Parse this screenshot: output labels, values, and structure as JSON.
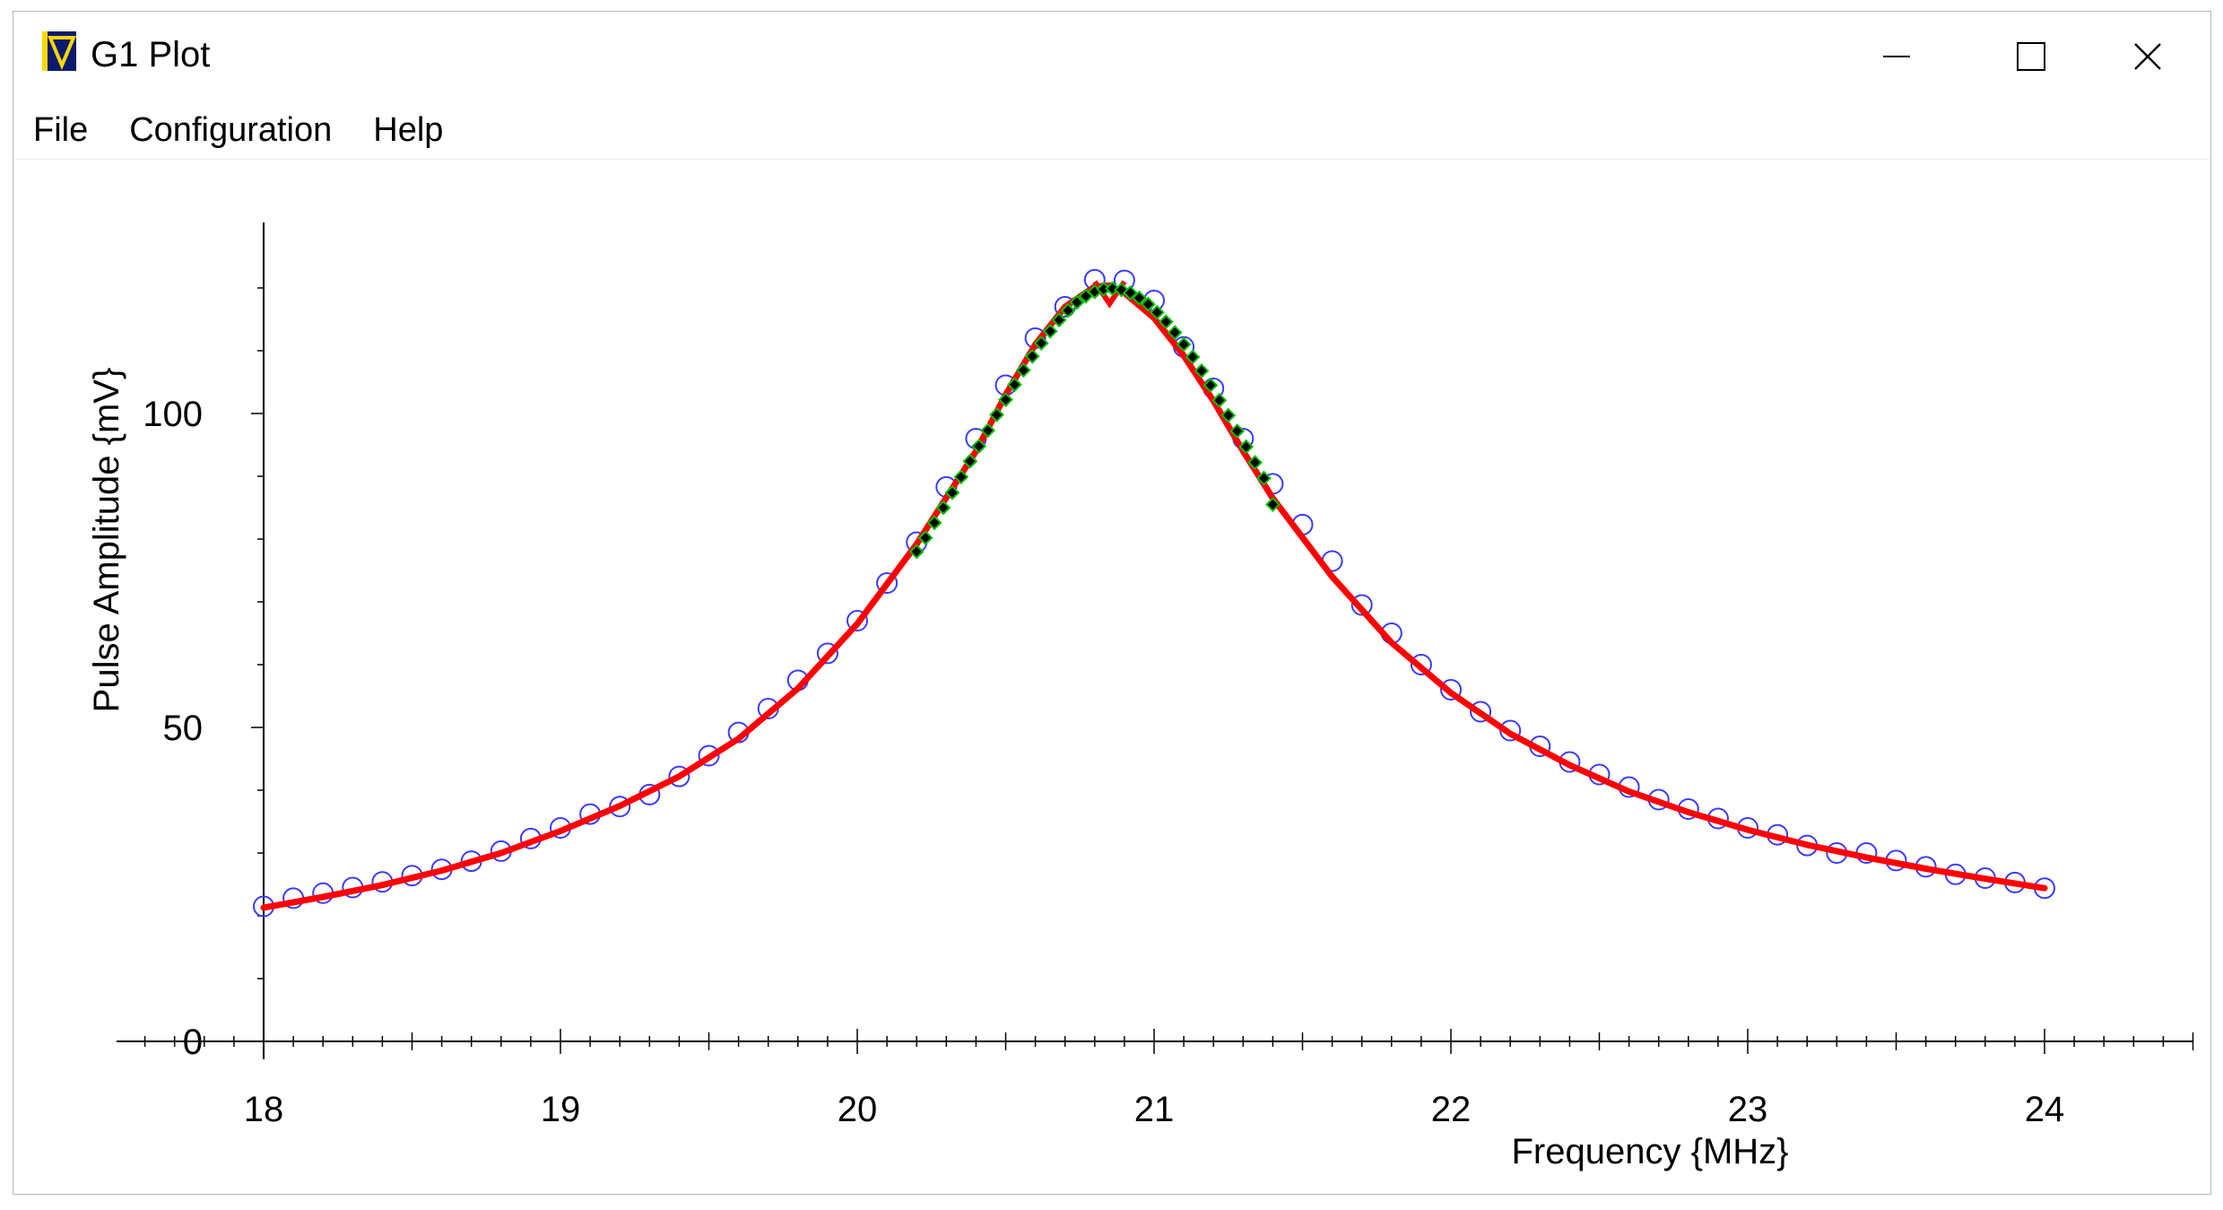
{
  "window": {
    "title": "G1 Plot",
    "icon": "v-logo-icon",
    "controls": [
      "minimize-icon",
      "maximize-icon",
      "close-icon"
    ]
  },
  "menu": {
    "items": [
      "File",
      "Configuration",
      "Help"
    ]
  },
  "colors": {
    "axis": "#000000",
    "measured_points": "#3b3bff",
    "fit_curve": "#ff0000",
    "peak_points": "#00c000",
    "peak_points_fill": "#000000",
    "icon_bg": "#0a1a6e",
    "icon_accent": "#ffd700"
  },
  "chart_data": {
    "type": "scatter",
    "title": "",
    "xlabel": "Frequency {MHz}",
    "ylabel": "Pulse Amplitude {mV}",
    "xlim": [
      18,
      24.5
    ],
    "ylim": [
      0,
      130
    ],
    "xticks": [
      18,
      19,
      20,
      21,
      22,
      23,
      24
    ],
    "yticks": [
      0,
      50,
      100
    ],
    "grid": false,
    "legend": "none",
    "series": [
      {
        "style": "open-circle",
        "color": "#3b3bff",
        "points": [
          [
            18.0,
            21.5
          ],
          [
            18.1,
            22.8
          ],
          [
            18.2,
            23.6
          ],
          [
            18.3,
            24.5
          ],
          [
            18.4,
            25.4
          ],
          [
            18.5,
            26.4
          ],
          [
            18.6,
            27.4
          ],
          [
            18.7,
            28.7
          ],
          [
            18.8,
            30.3
          ],
          [
            18.9,
            32.3
          ],
          [
            19.0,
            34.0
          ],
          [
            19.1,
            36.2
          ],
          [
            19.2,
            37.4
          ],
          [
            19.3,
            39.3
          ],
          [
            19.4,
            42.2
          ],
          [
            19.5,
            45.5
          ],
          [
            19.6,
            49.2
          ],
          [
            19.7,
            53.0
          ],
          [
            19.8,
            57.5
          ],
          [
            19.9,
            61.8
          ],
          [
            20.0,
            67.0
          ],
          [
            20.1,
            73.0
          ],
          [
            20.2,
            79.5
          ],
          [
            20.3,
            88.3
          ],
          [
            20.4,
            96.0
          ],
          [
            20.5,
            104.5
          ],
          [
            20.6,
            112.0
          ],
          [
            20.7,
            117.0
          ],
          [
            20.8,
            121.3
          ],
          [
            20.9,
            121.2
          ],
          [
            21.0,
            118.0
          ],
          [
            21.1,
            110.6
          ],
          [
            21.2,
            104.0
          ],
          [
            21.3,
            96.0
          ],
          [
            21.4,
            88.8
          ],
          [
            21.5,
            82.3
          ],
          [
            21.6,
            76.5
          ],
          [
            21.7,
            69.5
          ],
          [
            21.8,
            65.0
          ],
          [
            21.9,
            60.0
          ],
          [
            22.0,
            56.0
          ],
          [
            22.1,
            52.5
          ],
          [
            22.2,
            49.5
          ],
          [
            22.3,
            47.0
          ],
          [
            22.4,
            44.5
          ],
          [
            22.5,
            42.5
          ],
          [
            22.6,
            40.5
          ],
          [
            22.7,
            38.5
          ],
          [
            22.8,
            37.0
          ],
          [
            22.9,
            35.5
          ],
          [
            23.0,
            34.0
          ],
          [
            23.1,
            32.9
          ],
          [
            23.2,
            31.2
          ],
          [
            23.3,
            30.0
          ],
          [
            23.4,
            30.0
          ],
          [
            23.5,
            28.8
          ],
          [
            23.6,
            27.8
          ],
          [
            23.7,
            26.6
          ],
          [
            23.8,
            26.0
          ],
          [
            23.9,
            25.3
          ],
          [
            24.0,
            24.4
          ]
        ]
      },
      {
        "style": "line",
        "color": "#ff0000",
        "points": [
          [
            18.0,
            21.3
          ],
          [
            18.2,
            23.0
          ],
          [
            18.4,
            24.9
          ],
          [
            18.6,
            27.2
          ],
          [
            18.8,
            30.0
          ],
          [
            19.0,
            33.5
          ],
          [
            19.2,
            37.5
          ],
          [
            19.4,
            42.2
          ],
          [
            19.6,
            48.2
          ],
          [
            19.8,
            56.2
          ],
          [
            20.0,
            66.5
          ],
          [
            20.2,
            79.2
          ],
          [
            20.4,
            94.0
          ],
          [
            20.5,
            103.0
          ],
          [
            20.6,
            111.0
          ],
          [
            20.7,
            117.0
          ],
          [
            20.8,
            120.2
          ],
          [
            20.85,
            120.4
          ],
          [
            20.9,
            119.2
          ],
          [
            21.0,
            115.2
          ],
          [
            21.1,
            109.2
          ],
          [
            21.2,
            102.0
          ],
          [
            21.3,
            94.0
          ],
          [
            21.4,
            86.5
          ],
          [
            21.6,
            74.0
          ],
          [
            21.8,
            63.5
          ],
          [
            22.0,
            55.5
          ],
          [
            22.2,
            49.0
          ],
          [
            22.4,
            44.0
          ],
          [
            22.6,
            39.8
          ],
          [
            22.8,
            36.5
          ],
          [
            23.0,
            33.7
          ],
          [
            23.2,
            31.3
          ],
          [
            23.4,
            29.3
          ],
          [
            23.6,
            27.5
          ],
          [
            23.8,
            25.9
          ],
          [
            24.0,
            24.4
          ]
        ]
      },
      {
        "style": "filled-diamond",
        "color": "#000000",
        "edge": "#00c000",
        "points": [
          [
            20.2,
            78.0
          ],
          [
            20.23,
            80.2
          ],
          [
            20.26,
            82.6
          ],
          [
            20.29,
            85.0
          ],
          [
            20.32,
            87.4
          ],
          [
            20.35,
            89.9
          ],
          [
            20.38,
            92.4
          ],
          [
            20.41,
            94.8
          ],
          [
            20.44,
            97.3
          ],
          [
            20.47,
            99.8
          ],
          [
            20.5,
            102.2
          ],
          [
            20.53,
            104.6
          ],
          [
            20.56,
            106.9
          ],
          [
            20.59,
            109.1
          ],
          [
            20.62,
            111.2
          ],
          [
            20.65,
            113.1
          ],
          [
            20.68,
            114.9
          ],
          [
            20.71,
            116.4
          ],
          [
            20.74,
            117.7
          ],
          [
            20.77,
            118.7
          ],
          [
            20.8,
            119.4
          ],
          [
            20.83,
            119.8
          ],
          [
            20.86,
            119.9
          ],
          [
            20.89,
            119.7
          ],
          [
            20.92,
            119.2
          ],
          [
            20.95,
            118.4
          ],
          [
            20.98,
            117.4
          ],
          [
            21.01,
            116.1
          ],
          [
            21.04,
            114.6
          ],
          [
            21.07,
            112.9
          ],
          [
            21.1,
            111.0
          ],
          [
            21.13,
            109.0
          ],
          [
            21.16,
            106.8
          ],
          [
            21.19,
            104.5
          ],
          [
            21.22,
            102.1
          ],
          [
            21.25,
            99.7
          ],
          [
            21.28,
            97.2
          ],
          [
            21.31,
            94.7
          ],
          [
            21.34,
            92.2
          ],
          [
            21.37,
            89.7
          ],
          [
            21.4,
            85.5
          ]
        ]
      }
    ]
  }
}
